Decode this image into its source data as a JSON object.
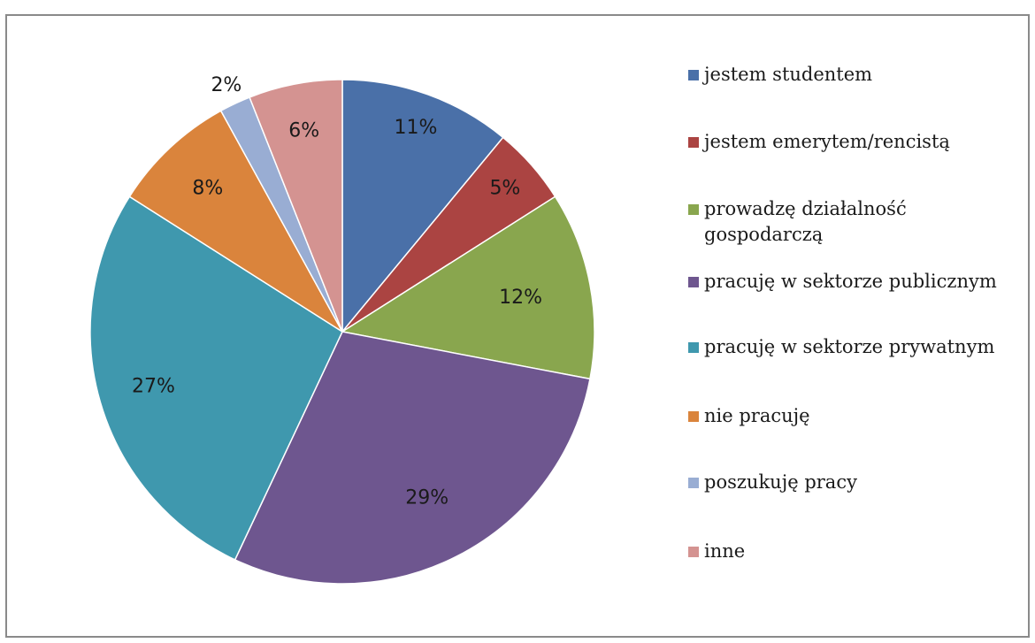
{
  "chart_data": {
    "type": "pie",
    "title": "",
    "slices": [
      {
        "label": "jestem studentem",
        "value": 11,
        "display": "11%",
        "color": "#4a70a8"
      },
      {
        "label": "jestem emerytem/rencistą",
        "value": 5,
        "display": "5%",
        "color": "#ab4442"
      },
      {
        "label": "prowadzę działalność\ngospodarczą",
        "value": 12,
        "display": "12%",
        "color": "#89a64e"
      },
      {
        "label": "pracuję w sektorze publicznym",
        "value": 29,
        "display": "29%",
        "color": "#6e568f"
      },
      {
        "label": "pracuję w sektorze prywatnym",
        "value": 27,
        "display": "27%",
        "color": "#3f98ae"
      },
      {
        "label": "nie pracuję",
        "value": 8,
        "display": "8%",
        "color": "#da843c"
      },
      {
        "label": "poszukuję pracy",
        "value": 2,
        "display": "2%",
        "color": "#99add3"
      },
      {
        "label": "inne",
        "value": 6,
        "display": "6%",
        "color": "#d49391"
      }
    ],
    "start_angle": "12 o'clock",
    "direction": "clockwise",
    "legend_position": "right"
  }
}
